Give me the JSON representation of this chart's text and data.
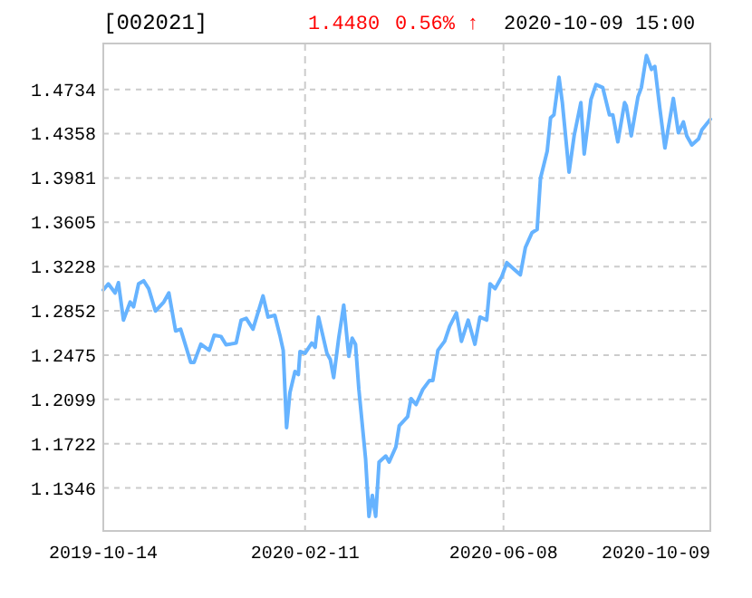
{
  "chart_data": {
    "type": "line",
    "title": "[002021]",
    "annotations": [
      "1.4480",
      "0.56% ↑",
      "2020-10-09 15:00"
    ],
    "xlim": [
      "2019-10-14",
      "2020-10-09"
    ],
    "xticks": [
      "2019-10-14",
      "2020-02-11",
      "2020-06-08",
      "2020-10-09"
    ],
    "ylim": [
      1.0981,
      1.5124
    ],
    "yticks": [
      1.1346,
      1.1722,
      1.2099,
      1.2475,
      1.2852,
      1.3228,
      1.3605,
      1.3981,
      1.4358,
      1.4734
    ],
    "grid": true,
    "marker": "none",
    "line_style": "solid",
    "x": [
      "2019-10-14",
      "2019-10-17",
      "2019-10-21",
      "2019-10-23",
      "2019-10-26",
      "2019-10-30",
      "2019-11-01",
      "2019-11-04",
      "2019-11-07",
      "2019-11-10",
      "2019-11-14",
      "2019-11-19",
      "2019-11-22",
      "2019-11-26",
      "2019-11-29",
      "2019-12-05",
      "2019-12-07",
      "2019-12-11",
      "2019-12-16",
      "2019-12-19",
      "2019-12-23",
      "2019-12-26",
      "2020-01-01",
      "2020-01-04",
      "2020-01-07",
      "2020-01-11",
      "2020-01-17",
      "2020-01-20",
      "2020-01-24",
      "2020-01-27",
      "2020-01-29",
      "2020-01-31",
      "2020-02-02",
      "2020-02-05",
      "2020-02-07",
      "2020-02-08",
      "2020-02-11",
      "2020-02-15",
      "2020-02-17",
      "2020-02-19",
      "2020-02-24",
      "2020-02-26",
      "2020-02-28",
      "2020-03-02",
      "2020-03-05",
      "2020-03-08",
      "2020-03-10",
      "2020-03-12",
      "2020-03-14",
      "2020-03-18",
      "2020-03-20",
      "2020-03-22",
      "2020-03-24",
      "2020-03-26",
      "2020-03-30",
      "2020-04-01",
      "2020-04-05",
      "2020-04-07",
      "2020-04-12",
      "2020-04-14",
      "2020-04-17",
      "2020-04-21",
      "2020-04-25",
      "2020-04-27",
      "2020-04-30",
      "2020-05-04",
      "2020-05-07",
      "2020-05-11",
      "2020-05-14",
      "2020-05-18",
      "2020-05-22",
      "2020-05-25",
      "2020-05-29",
      "2020-05-31",
      "2020-06-03",
      "2020-06-07",
      "2020-06-10",
      "2020-06-14",
      "2020-06-18",
      "2020-06-21",
      "2020-06-25",
      "2020-06-28",
      "2020-06-30",
      "2020-07-04",
      "2020-07-06",
      "2020-07-08",
      "2020-07-11",
      "2020-07-13",
      "2020-07-17",
      "2020-07-20",
      "2020-07-24",
      "2020-07-26",
      "2020-07-30",
      "2020-08-02",
      "2020-08-06",
      "2020-08-10",
      "2020-08-12",
      "2020-08-15",
      "2020-08-19",
      "2020-08-20",
      "2020-08-23",
      "2020-08-27",
      "2020-08-29",
      "2020-09-01",
      "2020-09-04",
      "2020-09-06",
      "2020-09-09",
      "2020-09-12",
      "2020-09-17",
      "2020-09-20",
      "2020-09-23",
      "2020-09-25",
      "2020-09-28",
      "2020-10-02",
      "2020-10-04",
      "2020-10-09"
    ],
    "series": [
      {
        "color": "#66b3ff",
        "values": [
          1.303,
          1.3081,
          1.3004,
          1.3091,
          1.2773,
          1.2927,
          1.2886,
          1.3081,
          1.3107,
          1.304,
          1.285,
          1.2927,
          1.3004,
          1.2681,
          1.2696,
          1.2414,
          1.2414,
          1.2568,
          1.2516,
          1.2645,
          1.2634,
          1.2563,
          1.2578,
          1.2773,
          1.2788,
          1.2696,
          1.2978,
          1.2799,
          1.2814,
          1.2645,
          1.2516,
          1.1859,
          1.2157,
          1.2337,
          1.2311,
          1.2506,
          1.2491,
          1.2578,
          1.2542,
          1.2799,
          1.2491,
          1.2439,
          1.2285,
          1.2619,
          1.2901,
          1.2465,
          1.2619,
          1.2568,
          1.2183,
          1.1592,
          1.1105,
          1.1284,
          1.1105,
          1.1567,
          1.1618,
          1.1567,
          1.1695,
          1.1875,
          1.1952,
          1.2106,
          1.2055,
          1.2183,
          1.226,
          1.226,
          1.2516,
          1.2593,
          1.2721,
          1.2834,
          1.2593,
          1.2773,
          1.2568,
          1.2799,
          1.2773,
          1.3081,
          1.304,
          1.3143,
          1.3261,
          1.3209,
          1.3158,
          1.3389,
          1.3517,
          1.3543,
          1.3979,
          1.421,
          1.4493,
          1.4518,
          1.4837,
          1.4621,
          1.4031,
          1.4339,
          1.4621,
          1.4185,
          1.4647,
          1.4775,
          1.475,
          1.4518,
          1.4518,
          1.4288,
          1.4621,
          1.4595,
          1.4339,
          1.4672,
          1.475,
          1.5022,
          1.4904,
          1.4929,
          1.457,
          1.4236,
          1.4657,
          1.4365,
          1.4457,
          1.4339,
          1.4262,
          1.4314,
          1.439,
          1.448
        ]
      }
    ]
  }
}
